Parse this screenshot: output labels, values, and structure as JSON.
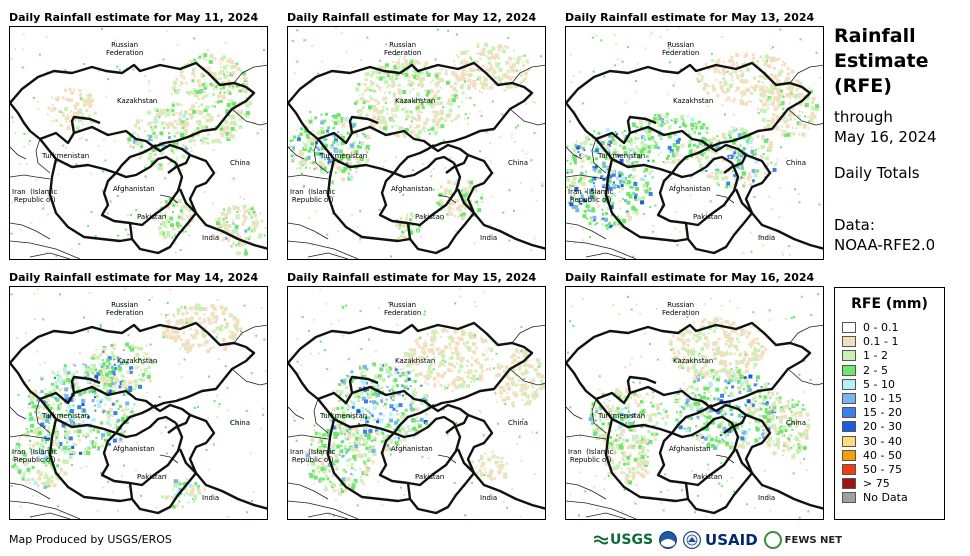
{
  "panels": [
    {
      "title": "Daily Rainfall estimate for May 11, 2024",
      "date": "May 11, 2024"
    },
    {
      "title": "Daily Rainfall estimate for May 12, 2024",
      "date": "May 12, 2024"
    },
    {
      "title": "Daily Rainfall estimate for May 13, 2024",
      "date": "May 13, 2024"
    },
    {
      "title": "Daily Rainfall estimate for May 14, 2024",
      "date": "May 14, 2024"
    },
    {
      "title": "Daily Rainfall estimate for May 15, 2024",
      "date": "May 15, 2024"
    },
    {
      "title": "Daily Rainfall estimate for May 16, 2024",
      "date": "May 16, 2024"
    }
  ],
  "country_labels": {
    "russia": "Russian\nFederation",
    "kazakhstan": "Kazakhstan",
    "turkmenistan": "Turkmenistan",
    "china": "China",
    "iran": "Iran  (Islamic\nRepublic of)",
    "afghanistan": "Afghanistan",
    "pakistan": "Pakistan",
    "india": "India"
  },
  "sidebar": {
    "title": "Rainfall Estimate (RFE)",
    "through_label": "through",
    "through_date": "May 16, 2024",
    "daily_totals": "Daily Totals",
    "data_label": "Data:",
    "data_source": "NOAA-RFE2.0"
  },
  "legend": {
    "title": "RFE (mm)",
    "items": [
      {
        "label": "0 - 0.1",
        "color": "#ffffff"
      },
      {
        "label": "0.1 - 1",
        "color": "#f2dfc0"
      },
      {
        "label": "1 - 2",
        "color": "#c8f2b4"
      },
      {
        "label": "2 - 5",
        "color": "#6ee66e"
      },
      {
        "label": "5 - 10",
        "color": "#b4f0f5"
      },
      {
        "label": "10 - 15",
        "color": "#78b4f0"
      },
      {
        "label": "15 - 20",
        "color": "#3c82e6"
      },
      {
        "label": "20 - 30",
        "color": "#1e5adc"
      },
      {
        "label": "30 - 40",
        "color": "#fadc78"
      },
      {
        "label": "40 - 50",
        "color": "#f5a000"
      },
      {
        "label": "50 - 75",
        "color": "#f03c14"
      },
      {
        "label": "> 75",
        "color": "#a01414"
      },
      {
        "label": "No Data",
        "color": "#a0a0a0"
      }
    ]
  },
  "footer": {
    "credit": "Map Produced by USGS/EROS",
    "logos": [
      "USGS",
      "NOAA",
      "DOI",
      "USAID",
      "FEWS NET"
    ]
  }
}
